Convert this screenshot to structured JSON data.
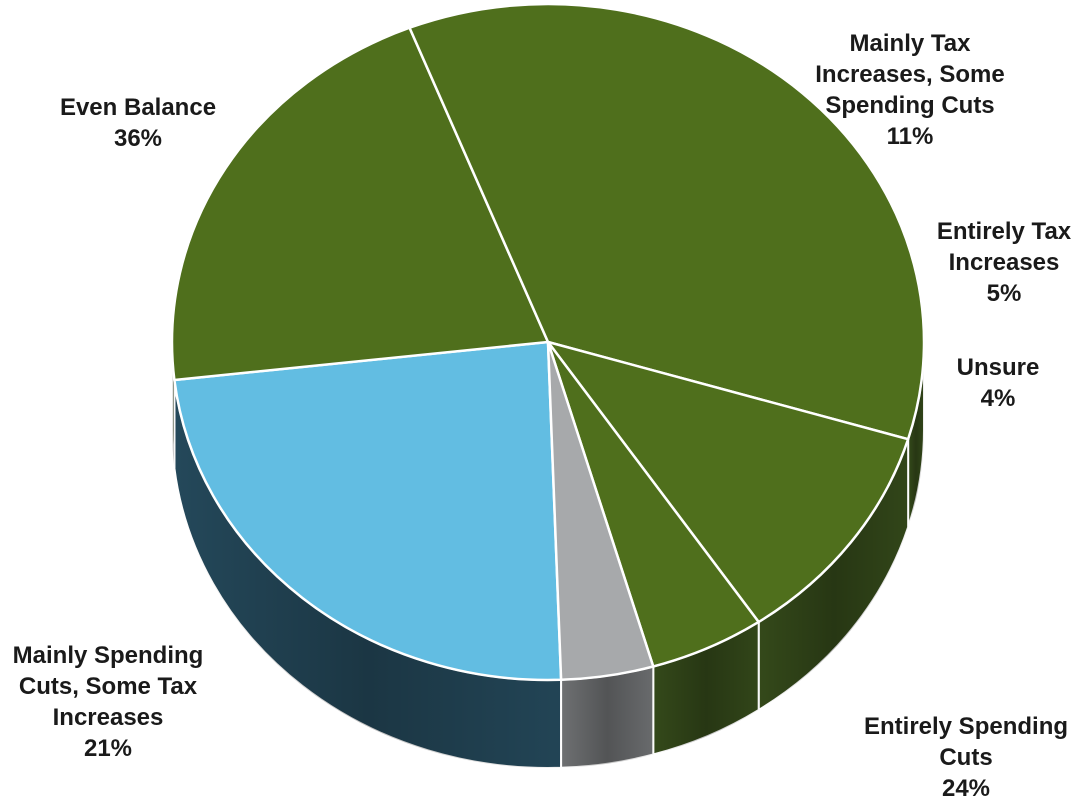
{
  "chart_data": {
    "type": "pie",
    "title": "",
    "slices": [
      {
        "label_lines": [
          "Entirely Spending",
          "Cuts"
        ],
        "value": 24,
        "value_text": "24%",
        "color": "#62BDE2",
        "side_color": "#24485A"
      },
      {
        "label_lines": [
          "Mainly Spending",
          "Cuts, Some Tax",
          "Increases"
        ],
        "value": 21,
        "value_text": "21%",
        "color": "#4F6F1C",
        "side_color": "#34491A"
      },
      {
        "label_lines": [
          "Even Balance"
        ],
        "value": 36,
        "value_text": "36%",
        "color": "#4F6F1C",
        "side_color": "#34491A"
      },
      {
        "label_lines": [
          "Mainly Tax",
          "Increases, Some",
          "Spending Cuts"
        ],
        "value": 11,
        "value_text": "11%",
        "color": "#4F6F1C",
        "side_color": "#34491A"
      },
      {
        "label_lines": [
          "Entirely Tax",
          "Increases"
        ],
        "value": 5,
        "value_text": "5%",
        "color": "#4F6F1C",
        "side_color": "#34491A"
      },
      {
        "label_lines": [
          "Unsure"
        ],
        "value": 4,
        "value_text": "4%",
        "color": "#A7A9AB",
        "side_color": "#6E7072"
      }
    ],
    "legend": "none",
    "style": "3d-tilted"
  }
}
